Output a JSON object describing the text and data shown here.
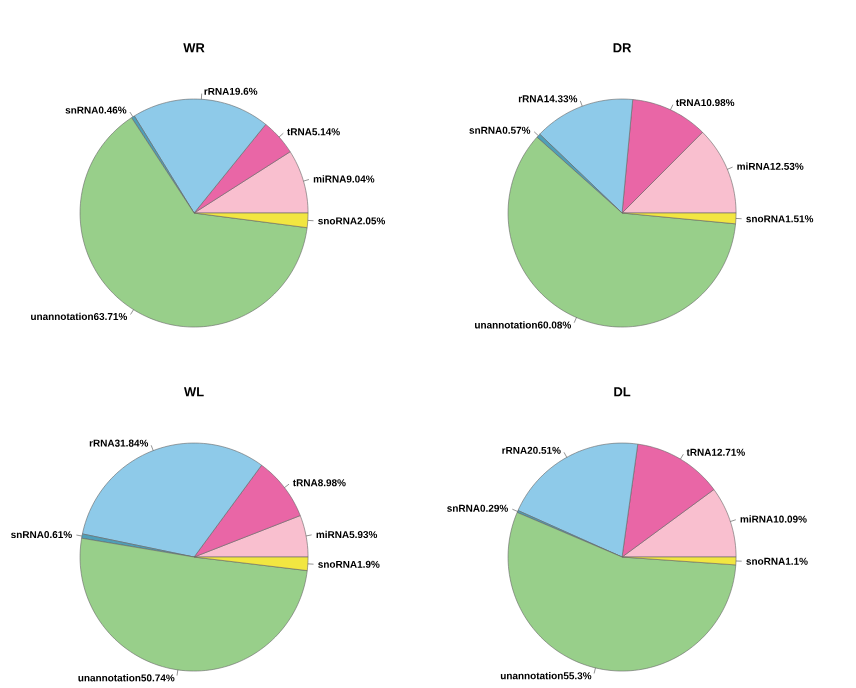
{
  "chart_data": [
    {
      "type": "pie",
      "title": "WR",
      "categories": [
        "miRNA",
        "tRNA",
        "rRNA",
        "snRNA",
        "unannotation",
        "snoRNA"
      ],
      "values": [
        9.04,
        5.14,
        19.6,
        0.46,
        63.71,
        2.05
      ],
      "value_labels": [
        "9.04%",
        "5.14%",
        "19.6%",
        "0.46%",
        "63.71%",
        "2.05%"
      ],
      "colors": [
        "#f9bfcf",
        "#e966a6",
        "#8ecae9",
        "#4f9fb8",
        "#98cf8a",
        "#f2e641"
      ]
    },
    {
      "type": "pie",
      "title": "DR",
      "categories": [
        "miRNA",
        "tRNA",
        "rRNA",
        "snRNA",
        "unannotation",
        "snoRNA"
      ],
      "values": [
        12.53,
        10.98,
        14.33,
        0.57,
        60.08,
        1.51
      ],
      "value_labels": [
        "12.53%",
        "10.98%",
        "14.33%",
        "0.57%",
        "60.08%",
        "1.51%"
      ],
      "colors": [
        "#f9bfcf",
        "#e966a6",
        "#8ecae9",
        "#4f9fb8",
        "#98cf8a",
        "#f2e641"
      ]
    },
    {
      "type": "pie",
      "title": "WL",
      "categories": [
        "miRNA",
        "tRNA",
        "rRNA",
        "snRNA",
        "unannotation",
        "snoRNA"
      ],
      "values": [
        5.93,
        8.98,
        31.84,
        0.61,
        50.74,
        1.9
      ],
      "value_labels": [
        "5.93%",
        "8.98%",
        "31.84%",
        "0.61%",
        "50.74%",
        "1.9%"
      ],
      "colors": [
        "#f9bfcf",
        "#e966a6",
        "#8ecae9",
        "#4f9fb8",
        "#98cf8a",
        "#f2e641"
      ]
    },
    {
      "type": "pie",
      "title": "DL",
      "categories": [
        "miRNA",
        "tRNA",
        "rRNA",
        "snRNA",
        "unannotation",
        "snoRNA"
      ],
      "values": [
        10.09,
        12.71,
        20.51,
        0.29,
        55.3,
        1.1
      ],
      "value_labels": [
        "10.09%",
        "12.71%",
        "20.51%",
        "0.29%",
        "55.3%",
        "1.1%"
      ],
      "colors": [
        "#f9bfcf",
        "#e966a6",
        "#8ecae9",
        "#4f9fb8",
        "#98cf8a",
        "#f2e641"
      ]
    }
  ]
}
